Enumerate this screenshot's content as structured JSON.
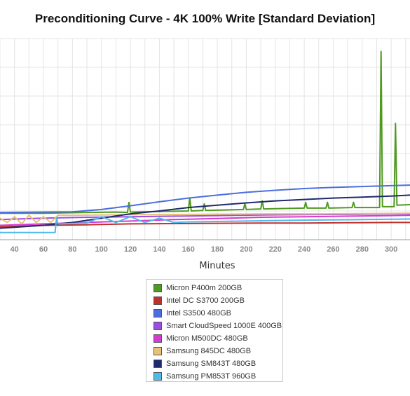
{
  "chart_data": {
    "type": "line",
    "title": "Preconditioning Curve - 4K 100% Write [Standard Deviation]",
    "xlabel": "Minutes",
    "ylabel": "",
    "x_ticks": [
      40,
      60,
      80,
      100,
      120,
      140,
      160,
      180,
      200,
      220,
      240,
      260,
      280,
      300
    ],
    "xlim": [
      30,
      313
    ],
    "ylim": [
      0,
      7
    ],
    "grid": true,
    "legend_position": "bottom",
    "series": [
      {
        "name": "Micron P400m 200GB",
        "color": "#4f9a1f",
        "points": [
          [
            30,
            0.92
          ],
          [
            60,
            0.92
          ],
          [
            90,
            0.95
          ],
          [
            110,
            0.96
          ],
          [
            118,
            0.95
          ],
          [
            119,
            1.3
          ],
          [
            120,
            0.96
          ],
          [
            140,
            0.98
          ],
          [
            160,
            1.0
          ],
          [
            161,
            1.45
          ],
          [
            162,
            1.0
          ],
          [
            170,
            1.02
          ],
          [
            171,
            1.25
          ],
          [
            172,
            1.02
          ],
          [
            198,
            1.05
          ],
          [
            199,
            1.25
          ],
          [
            200,
            1.05
          ],
          [
            210,
            1.07
          ],
          [
            211,
            1.35
          ],
          [
            212,
            1.07
          ],
          [
            240,
            1.1
          ],
          [
            241,
            1.3
          ],
          [
            242,
            1.1
          ],
          [
            255,
            1.1
          ],
          [
            256,
            1.3
          ],
          [
            257,
            1.1
          ],
          [
            273,
            1.12
          ],
          [
            274,
            1.3
          ],
          [
            275,
            1.12
          ],
          [
            292,
            1.12
          ],
          [
            293,
            6.55
          ],
          [
            294,
            1.15
          ],
          [
            302,
            1.15
          ],
          [
            303,
            4.05
          ],
          [
            304,
            1.2
          ],
          [
            313,
            1.22
          ]
        ]
      },
      {
        "name": "Intel DC S3700 200GB",
        "color": "#c0302b",
        "points": [
          [
            30,
            0.45
          ],
          [
            60,
            0.5
          ],
          [
            90,
            0.52
          ],
          [
            120,
            0.55
          ],
          [
            150,
            0.56
          ],
          [
            180,
            0.57
          ],
          [
            210,
            0.58
          ],
          [
            240,
            0.58
          ],
          [
            270,
            0.59
          ],
          [
            300,
            0.6
          ],
          [
            313,
            0.6
          ]
        ]
      },
      {
        "name": "Intel S3500 480GB",
        "color": "#4a6ee0",
        "points": [
          [
            30,
            0.95
          ],
          [
            80,
            0.97
          ],
          [
            100,
            1.05
          ],
          [
            120,
            1.18
          ],
          [
            140,
            1.32
          ],
          [
            160,
            1.45
          ],
          [
            180,
            1.55
          ],
          [
            200,
            1.65
          ],
          [
            220,
            1.72
          ],
          [
            240,
            1.78
          ],
          [
            260,
            1.82
          ],
          [
            280,
            1.85
          ],
          [
            300,
            1.88
          ],
          [
            313,
            1.9
          ]
        ]
      },
      {
        "name": "Smart CloudSpeed 1000E 400GB",
        "color": "#9b4fe0",
        "points": [
          [
            30,
            0.7
          ],
          [
            60,
            0.75
          ],
          [
            90,
            0.78
          ],
          [
            120,
            0.8
          ],
          [
            150,
            0.82
          ],
          [
            180,
            0.84
          ],
          [
            210,
            0.86
          ],
          [
            240,
            0.87
          ],
          [
            270,
            0.88
          ],
          [
            300,
            0.9
          ],
          [
            313,
            0.9
          ]
        ]
      },
      {
        "name": "Micron M500DC 480GB",
        "color": "#d63ad0",
        "points": [
          [
            30,
            0.5
          ],
          [
            60,
            0.55
          ],
          [
            90,
            0.6
          ],
          [
            120,
            0.65
          ],
          [
            150,
            0.7
          ],
          [
            180,
            0.74
          ],
          [
            210,
            0.78
          ],
          [
            240,
            0.8
          ],
          [
            270,
            0.82
          ],
          [
            300,
            0.84
          ],
          [
            313,
            0.85
          ]
        ]
      },
      {
        "name": "Samsung 845DC 480GB",
        "color": "#e8c07a",
        "points": [
          [
            30,
            0.75
          ],
          [
            35,
            0.6
          ],
          [
            40,
            0.8
          ],
          [
            45,
            0.55
          ],
          [
            50,
            0.85
          ],
          [
            55,
            0.6
          ],
          [
            60,
            0.8
          ],
          [
            65,
            0.6
          ],
          [
            70,
            0.85
          ],
          [
            80,
            0.85
          ],
          [
            100,
            0.86
          ],
          [
            130,
            0.87
          ],
          [
            160,
            0.88
          ],
          [
            190,
            0.89
          ],
          [
            220,
            0.9
          ],
          [
            250,
            0.9
          ],
          [
            280,
            0.91
          ],
          [
            313,
            0.92
          ]
        ]
      },
      {
        "name": "Samsung SM843T 480GB",
        "color": "#1f2a6e",
        "points": [
          [
            30,
            0.4
          ],
          [
            60,
            0.5
          ],
          [
            80,
            0.6
          ],
          [
            100,
            0.75
          ],
          [
            120,
            0.9
          ],
          [
            140,
            1.0
          ],
          [
            160,
            1.12
          ],
          [
            180,
            1.2
          ],
          [
            200,
            1.28
          ],
          [
            220,
            1.35
          ],
          [
            240,
            1.4
          ],
          [
            260,
            1.45
          ],
          [
            280,
            1.48
          ],
          [
            300,
            1.52
          ],
          [
            313,
            1.55
          ]
        ]
      },
      {
        "name": "Samsung PM853T 960GB",
        "color": "#4fb8ec",
        "points": [
          [
            30,
            0.25
          ],
          [
            50,
            0.25
          ],
          [
            68,
            0.25
          ],
          [
            69,
            0.75
          ],
          [
            70,
            0.55
          ],
          [
            90,
            0.58
          ],
          [
            100,
            0.8
          ],
          [
            110,
            0.6
          ],
          [
            120,
            0.8
          ],
          [
            130,
            0.6
          ],
          [
            140,
            0.75
          ],
          [
            150,
            0.6
          ],
          [
            160,
            0.62
          ],
          [
            200,
            0.65
          ],
          [
            240,
            0.68
          ],
          [
            280,
            0.7
          ],
          [
            313,
            0.72
          ]
        ]
      }
    ]
  }
}
